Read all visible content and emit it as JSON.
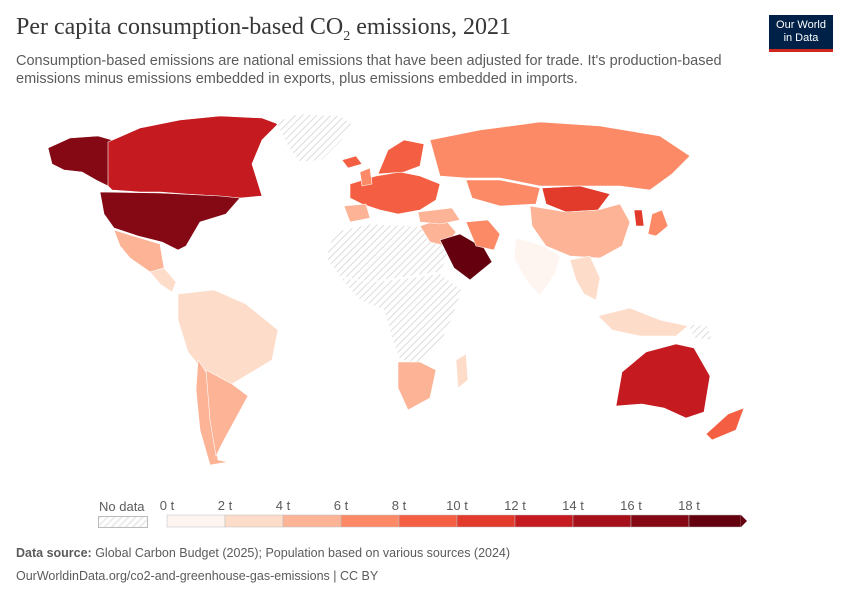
{
  "header": {
    "title_main": "Per capita consumption-based CO",
    "title_sub": "2",
    "title_end": " emissions, 2021",
    "subtitle": "Consumption-based emissions are national emissions that have been adjusted for trade. It's production-based emissions minus emissions embedded in exports, plus emissions embedded in imports."
  },
  "logo": {
    "line1": "Our World",
    "line2": "in Data"
  },
  "legend": {
    "no_data_label": "No data",
    "bins": [
      {
        "label": "0 t",
        "color": "#fef5f0"
      },
      {
        "label": "2 t",
        "color": "#fddcc9"
      },
      {
        "label": "4 t",
        "color": "#fcb396"
      },
      {
        "label": "6 t",
        "color": "#fc8a67"
      },
      {
        "label": "8 t",
        "color": "#f45f43"
      },
      {
        "label": "10 t",
        "color": "#e23a2b"
      },
      {
        "label": "12 t",
        "color": "#c41a20"
      },
      {
        "label": "14 t",
        "color": "#a5101a"
      },
      {
        "label": "16 t",
        "color": "#850914"
      },
      {
        "label": "18 t",
        "color": "#65000e"
      }
    ]
  },
  "footer": {
    "source_label": "Data source:",
    "source_text": " Global Carbon Budget (2025); Population based on various sources (2024)",
    "url": "OurWorldinData.org/co2-and-greenhouse-gas-emissions | CC BY"
  },
  "colors": {
    "brand": "#002147",
    "accent": "#ce261e",
    "no_data": "#ececec"
  },
  "regions": [
    {
      "name": "Alaska",
      "color": "#850914"
    },
    {
      "name": "Canada",
      "color": "#c41a20"
    },
    {
      "name": "Greenland",
      "color": "#ececec"
    },
    {
      "name": "United States",
      "color": "#850914"
    },
    {
      "name": "Mexico",
      "color": "#fcb396"
    },
    {
      "name": "Central America",
      "color": "#fddcc9"
    },
    {
      "name": "South America",
      "color": "#fddcc9"
    },
    {
      "name": "Chile",
      "color": "#fcb396"
    },
    {
      "name": "Argentina",
      "color": "#fcb396"
    },
    {
      "name": "Iceland",
      "color": "#f45f43"
    },
    {
      "name": "Europe",
      "color": "#f45f43"
    },
    {
      "name": "Scandinavia",
      "color": "#f45f43"
    },
    {
      "name": "United Kingdom",
      "color": "#fc8a67"
    },
    {
      "name": "Spain",
      "color": "#fcb396"
    },
    {
      "name": "Russia",
      "color": "#fc8a67"
    },
    {
      "name": "Kazakhstan",
      "color": "#fc8a67"
    },
    {
      "name": "Mongolia",
      "color": "#e23a2b"
    },
    {
      "name": "China",
      "color": "#fcb396"
    },
    {
      "name": "Korea",
      "color": "#e23a2b"
    },
    {
      "name": "Japan",
      "color": "#fc8a67"
    },
    {
      "name": "India",
      "color": "#fef5f0"
    },
    {
      "name": "Southeast Asia",
      "color": "#fddcc9"
    },
    {
      "name": "North Africa",
      "color": "#ececec"
    },
    {
      "name": "Sub-Saharan Africa",
      "color": "#ececec"
    },
    {
      "name": "Southern Africa",
      "color": "#fcb396"
    },
    {
      "name": "Middle East",
      "color": "#fcb396"
    },
    {
      "name": "Saudi Arabia",
      "color": "#65000e"
    },
    {
      "name": "Iran",
      "color": "#fc8a67"
    },
    {
      "name": "Turkey",
      "color": "#fcb396"
    },
    {
      "name": "Indonesia",
      "color": "#fddcc9"
    },
    {
      "name": "Papua New Guinea",
      "color": "#ececec"
    },
    {
      "name": "Australia",
      "color": "#c41a20"
    },
    {
      "name": "New Zealand",
      "color": "#f45f43"
    },
    {
      "name": "Madagascar",
      "color": "#fddcc9"
    }
  ]
}
